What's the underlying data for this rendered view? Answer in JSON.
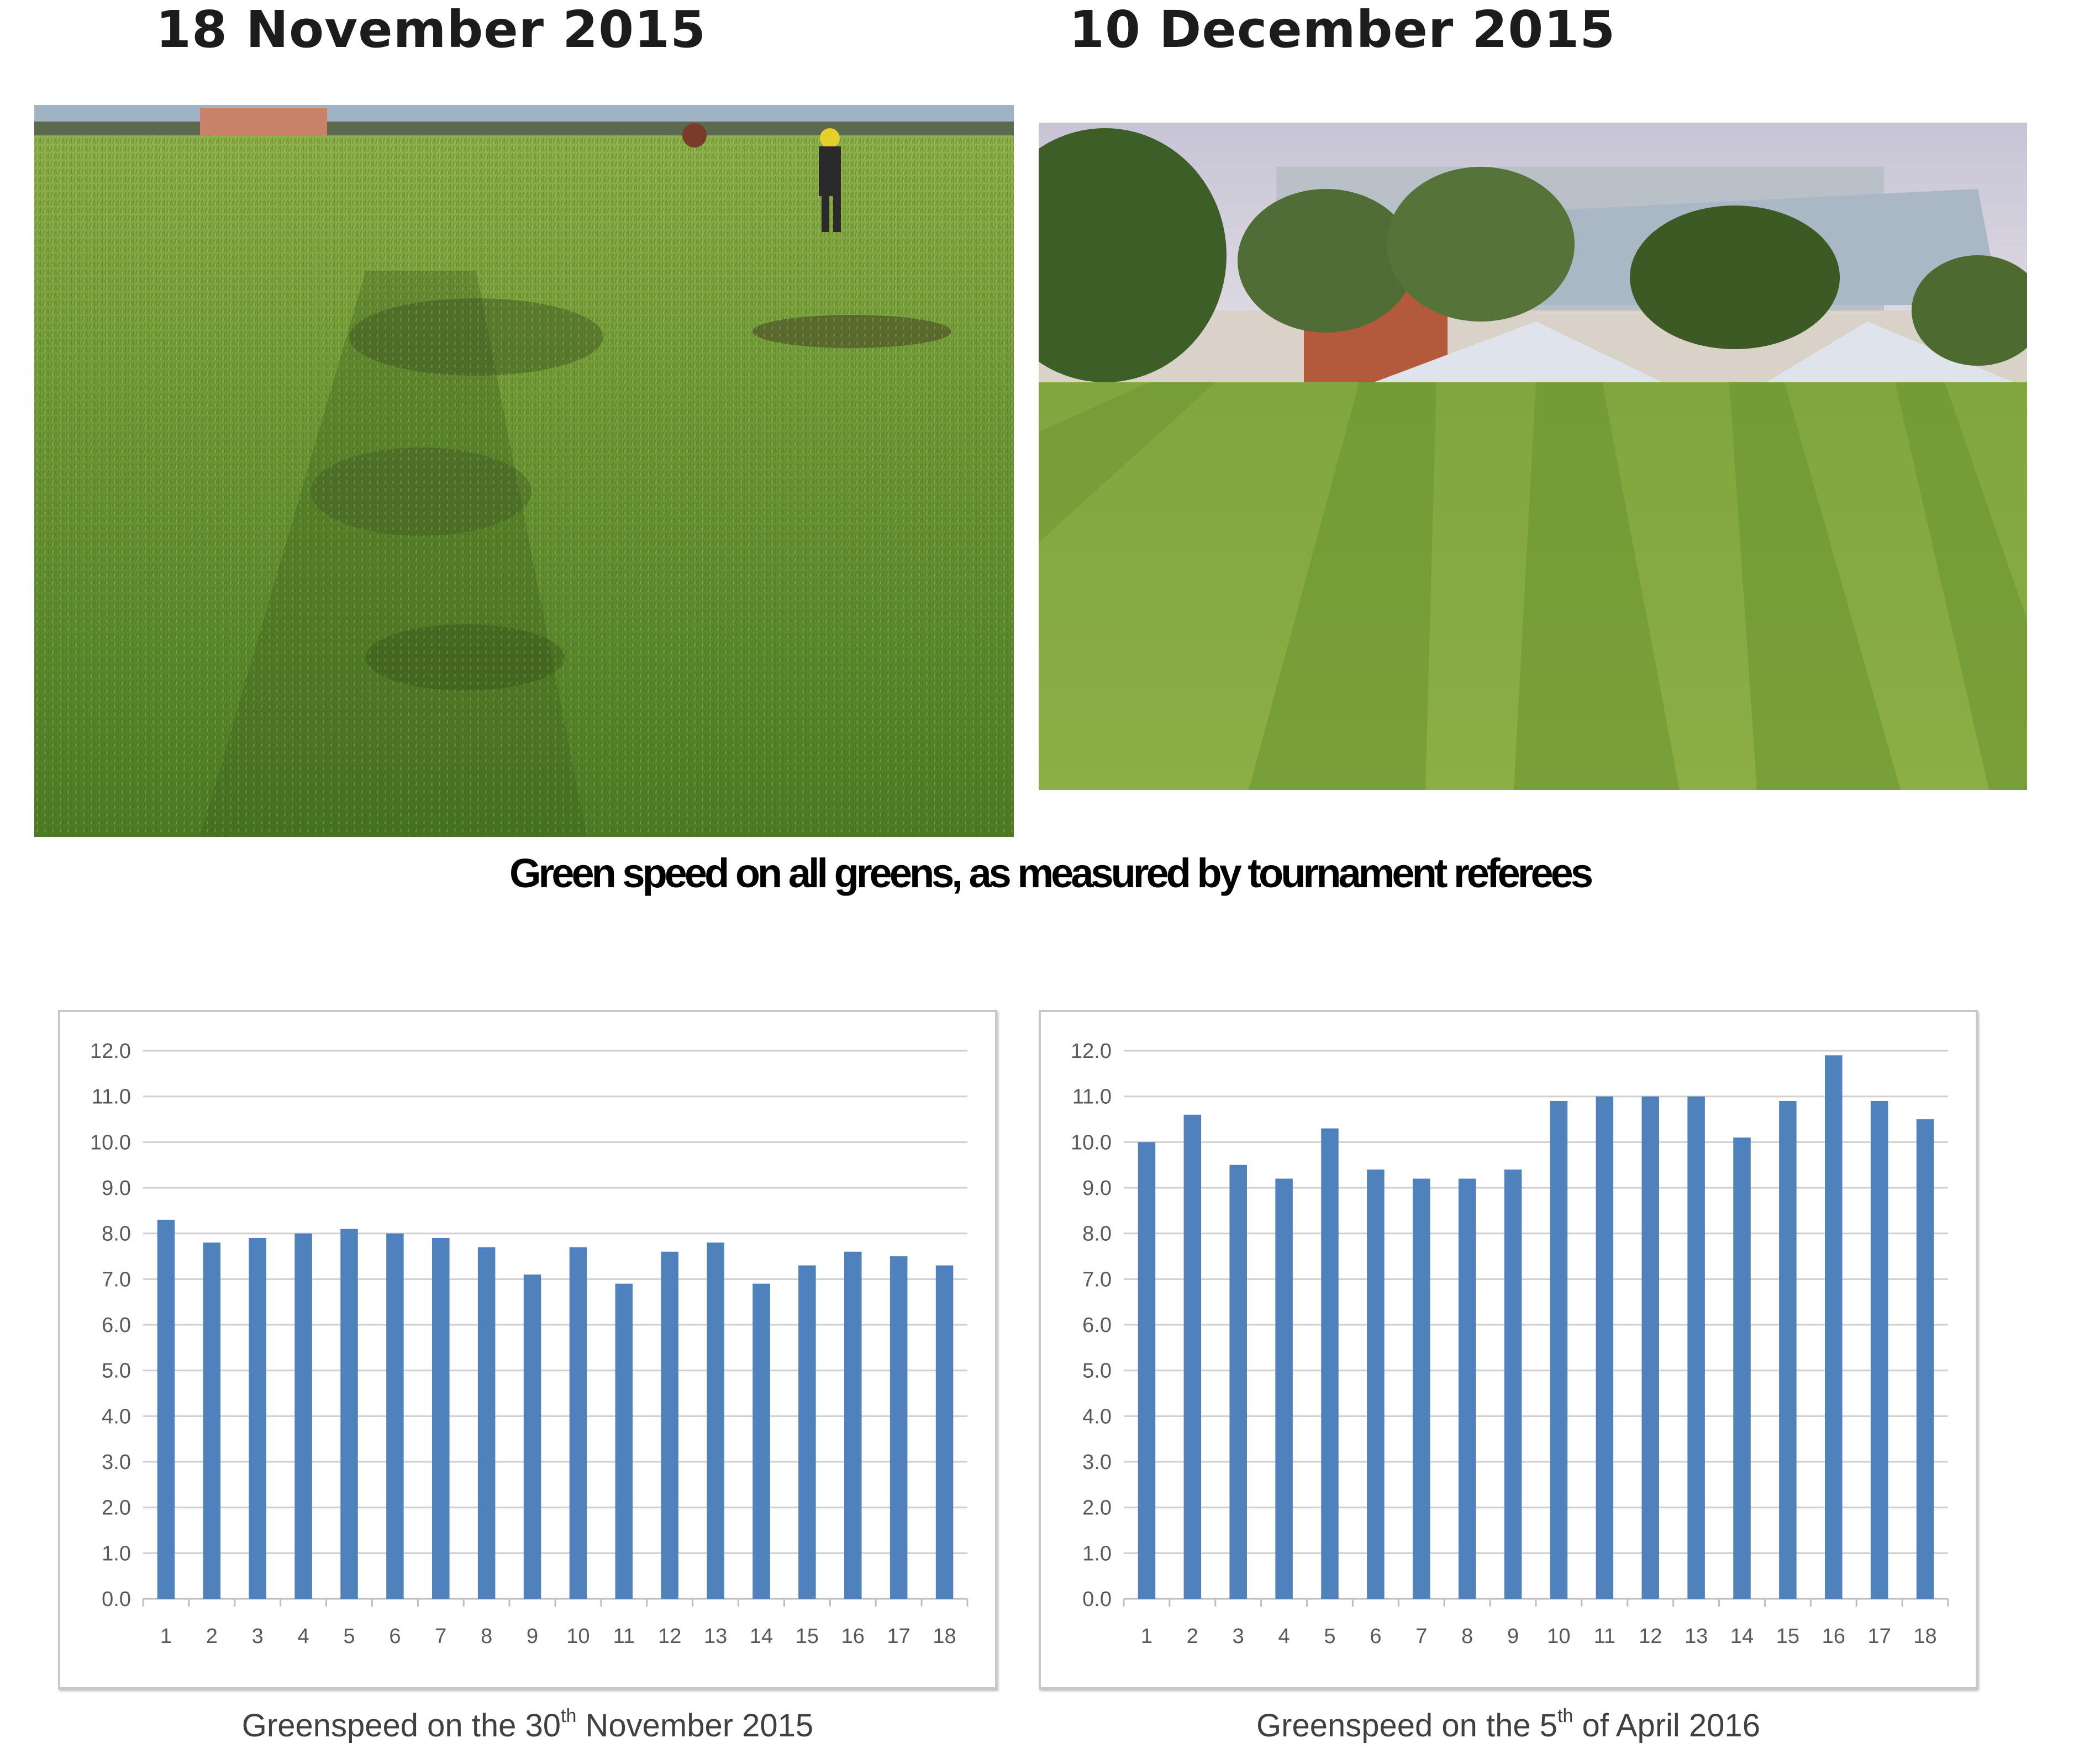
{
  "photos": [
    {
      "date": "18 November 2015"
    },
    {
      "date": "10 December 2015"
    }
  ],
  "section_title": "Green speed on all greens, as measured by tournament referees",
  "colors": {
    "bar": "#4F81BD",
    "grid": "#d0d0d0",
    "axis": "#bfbfbf"
  },
  "chart_data": [
    {
      "type": "bar",
      "caption_prefix": "Greenspeed on the 30",
      "caption_sup": "th",
      "caption_suffix": " November 2015",
      "categories": [
        "1",
        "2",
        "3",
        "4",
        "5",
        "6",
        "7",
        "8",
        "9",
        "10",
        "11",
        "12",
        "13",
        "14",
        "15",
        "16",
        "17",
        "18"
      ],
      "values": [
        8.3,
        7.8,
        7.9,
        8.0,
        8.1,
        8.0,
        7.9,
        7.7,
        7.1,
        7.7,
        6.9,
        7.6,
        7.8,
        6.9,
        7.3,
        7.6,
        7.5,
        7.3
      ],
      "ylim": [
        0,
        12
      ],
      "yticks": [
        "0.0",
        "1.0",
        "2.0",
        "3.0",
        "4.0",
        "5.0",
        "6.0",
        "7.0",
        "8.0",
        "9.0",
        "10.0",
        "11.0",
        "12.0"
      ],
      "grid": true
    },
    {
      "type": "bar",
      "caption_prefix": "Greenspeed on the 5",
      "caption_sup": "th",
      "caption_suffix": " of April 2016",
      "categories": [
        "1",
        "2",
        "3",
        "4",
        "5",
        "6",
        "7",
        "8",
        "9",
        "10",
        "11",
        "12",
        "13",
        "14",
        "15",
        "16",
        "17",
        "18"
      ],
      "values": [
        10.0,
        10.6,
        9.5,
        9.2,
        10.3,
        9.4,
        9.2,
        9.2,
        9.4,
        10.9,
        11.0,
        11.0,
        11.0,
        10.1,
        10.9,
        11.9,
        10.9,
        10.5
      ],
      "ylim": [
        0,
        12
      ],
      "yticks": [
        "0.0",
        "1.0",
        "2.0",
        "3.0",
        "4.0",
        "5.0",
        "6.0",
        "7.0",
        "8.0",
        "9.0",
        "10.0",
        "11.0",
        "12.0"
      ],
      "grid": true
    }
  ]
}
